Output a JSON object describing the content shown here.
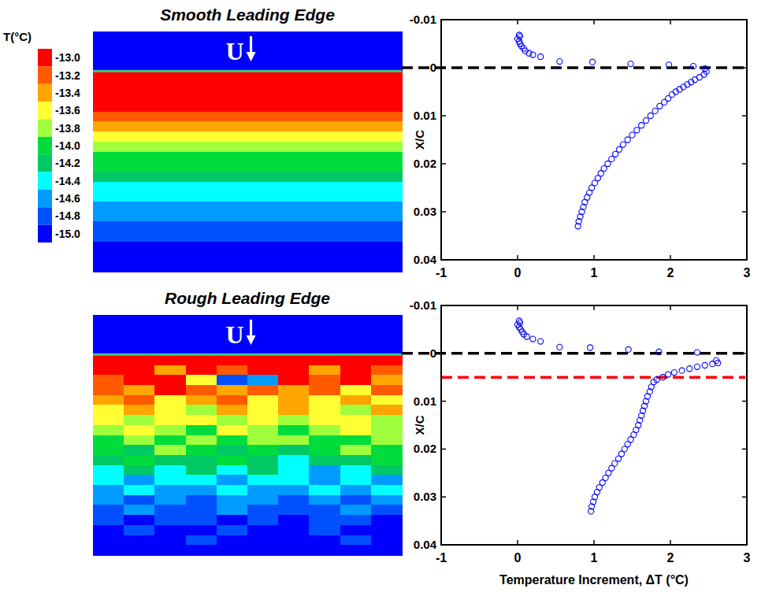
{
  "chart_data": [
    {
      "type": "heatmap",
      "title": "Smooth Leading Edge",
      "annotations": [
        "U"
      ],
      "cells": [
        [
          -15
        ],
        [
          -15
        ],
        [
          -15
        ],
        [
          -15
        ],
        [
          -13
        ],
        [
          -13
        ],
        [
          -13
        ],
        [
          -13
        ],
        [
          -13.2
        ],
        [
          -13.4
        ],
        [
          -13.6
        ],
        [
          -13.8
        ],
        [
          -14.0
        ],
        [
          -14.0
        ],
        [
          -14.2
        ],
        [
          -14.4
        ],
        [
          -14.4
        ],
        [
          -14.6
        ],
        [
          -14.6
        ],
        [
          -14.8
        ],
        [
          -14.8
        ],
        [
          -15
        ],
        [
          -15
        ],
        [
          -15
        ]
      ],
      "colorbar": {
        "title": "T(°C)",
        "range": [
          -15.1,
          -12.9
        ],
        "ticks": [
          {
            "value": -13,
            "label": "-13.0"
          },
          {
            "value": -13.2,
            "label": "-13.2"
          },
          {
            "value": -13.4,
            "label": "-13.4"
          },
          {
            "value": -13.6,
            "label": "-13.6"
          },
          {
            "value": -13.8,
            "label": "-13.8"
          },
          {
            "value": -14,
            "label": "-14.0"
          },
          {
            "value": -14.2,
            "label": "-14.2"
          },
          {
            "value": -14.4,
            "label": "-14.4"
          },
          {
            "value": -14.6,
            "label": "-14.6"
          },
          {
            "value": -14.8,
            "label": "-14.8"
          },
          {
            "value": -15,
            "label": "-15.0"
          }
        ],
        "colors": [
          "#ff0000",
          "#ff5a00",
          "#ffa500",
          "#ffff33",
          "#a0ff3c",
          "#00dc3c",
          "#00c864",
          "#00ffff",
          "#009bff",
          "#0050ff",
          "#0000ff"
        ]
      }
    },
    {
      "type": "heatmap",
      "title": "Rough Leading Edge",
      "annotations": [
        "U"
      ],
      "cells": [
        [
          -15,
          -15,
          -15,
          -15,
          -15,
          -15,
          -15,
          -15,
          -15,
          -15
        ],
        [
          -15,
          -15,
          -15,
          -15,
          -15,
          -15,
          -15,
          -15,
          -15,
          -15
        ],
        [
          -15,
          -15,
          -15,
          -15,
          -15,
          -15,
          -15,
          -15,
          -15,
          -15
        ],
        [
          -15,
          -15,
          -15,
          -15,
          -15,
          -15,
          -15,
          -15,
          -15,
          -15
        ],
        [
          -13,
          -13,
          -13,
          -13,
          -13,
          -13,
          -13,
          -13,
          -13,
          -13
        ],
        [
          -13,
          -13,
          -13.4,
          -13,
          -13.2,
          -13,
          -13,
          -13.4,
          -13,
          -13.2
        ],
        [
          -13.2,
          -13,
          -13,
          -13.6,
          -14.8,
          -14.6,
          -13,
          -13.2,
          -13,
          -13.4
        ],
        [
          -13.2,
          -13.4,
          -13,
          -13.2,
          -13.4,
          -13.2,
          -13.4,
          -13.2,
          -13.6,
          -13.2
        ],
        [
          -13.4,
          -13.2,
          -13.6,
          -13.4,
          -13.2,
          -13.6,
          -13.4,
          -13.6,
          -13.4,
          -13.6
        ],
        [
          -13.6,
          -13.4,
          -13.6,
          -13.8,
          -13.4,
          -13.6,
          -13.4,
          -13.6,
          -13.8,
          -13.4
        ],
        [
          -13.6,
          -13.8,
          -13.6,
          -13.6,
          -13.8,
          -13.6,
          -13.8,
          -13.6,
          -13.6,
          -13.8
        ],
        [
          -13.8,
          -13.6,
          -13.8,
          -14.0,
          -13.6,
          -13.8,
          -14.0,
          -13.8,
          -13.6,
          -13.8
        ],
        [
          -14.0,
          -13.8,
          -14.0,
          -13.8,
          -14.0,
          -13.8,
          -13.8,
          -14.0,
          -14.0,
          -13.8
        ],
        [
          -14.0,
          -14.2,
          -13.8,
          -14.0,
          -14.2,
          -14.0,
          -14.2,
          -14.0,
          -13.8,
          -14.0
        ],
        [
          -14.2,
          -14.0,
          -14.2,
          -14.2,
          -14.0,
          -14.2,
          -14.4,
          -14.2,
          -14.2,
          -14.0
        ],
        [
          -14.4,
          -14.2,
          -14.4,
          -14.2,
          -14.4,
          -14.2,
          -14.4,
          -14.6,
          -14.4,
          -14.2
        ],
        [
          -14.4,
          -14.6,
          -14.4,
          -14.4,
          -14.6,
          -14.4,
          -14.4,
          -14.6,
          -14.4,
          -14.6
        ],
        [
          -14.6,
          -14.4,
          -14.6,
          -14.6,
          -14.4,
          -14.6,
          -14.6,
          -14.4,
          -14.6,
          -14.4
        ],
        [
          -14.6,
          -14.8,
          -14.6,
          -14.8,
          -14.6,
          -14.6,
          -14.8,
          -14.6,
          -14.8,
          -14.6
        ],
        [
          -14.8,
          -14.6,
          -14.8,
          -14.8,
          -14.6,
          -14.8,
          -14.8,
          -14.8,
          -14.6,
          -14.8
        ],
        [
          -14.8,
          -15,
          -14.8,
          -14.8,
          -15,
          -14.8,
          -15,
          -14.8,
          -14.8,
          -15
        ],
        [
          -15,
          -14.8,
          -15,
          -15,
          -14.8,
          -15,
          -15,
          -14.8,
          -15,
          -15
        ],
        [
          -15,
          -15,
          -15,
          -14.8,
          -15,
          -15,
          -15,
          -15,
          -14.8,
          -15
        ],
        [
          -15,
          -15,
          -15,
          -15,
          -15,
          -15,
          -15,
          -15,
          -15,
          -15
        ]
      ]
    },
    {
      "type": "scatter",
      "ylabel": "X/C",
      "marker": "circle",
      "color": "#0000ff",
      "xlim": [
        -1,
        3
      ],
      "xticks": [
        -1,
        0,
        1,
        2,
        3
      ],
      "ylim": [
        0.04,
        -0.01
      ],
      "yticks": [
        -0.01,
        0,
        0.01,
        0.02,
        0.03,
        0.04
      ],
      "reference_lines": [
        {
          "value": 0,
          "color": "#000000"
        }
      ],
      "x": [
        0.02,
        0.03,
        0.0,
        0.02,
        0.03,
        0.05,
        0.08,
        0.1,
        0.15,
        0.2,
        0.3,
        0.55,
        0.98,
        1.48,
        1.98,
        2.3,
        2.45,
        2.47,
        2.44,
        2.38,
        2.32,
        2.27,
        2.22,
        2.17,
        2.12,
        2.07,
        2.02,
        1.97,
        1.92,
        1.86,
        1.8,
        1.74,
        1.68,
        1.62,
        1.56,
        1.5,
        1.44,
        1.38,
        1.33,
        1.28,
        1.23,
        1.18,
        1.13,
        1.09,
        1.05,
        1.01,
        0.97,
        0.94,
        0.91,
        0.88,
        0.86,
        0.84,
        0.82,
        0.8,
        0.79
      ],
      "values": [
        -0.0068,
        -0.0065,
        -0.006,
        -0.0055,
        -0.005,
        -0.0045,
        -0.004,
        -0.0035,
        -0.003,
        -0.0027,
        -0.0023,
        -0.0013,
        -0.0012,
        -0.0008,
        -0.0006,
        -0.0003,
        0.0002,
        0.0008,
        0.0014,
        0.002,
        0.0025,
        0.003,
        0.0035,
        0.004,
        0.0045,
        0.005,
        0.0056,
        0.0064,
        0.0072,
        0.008,
        0.009,
        0.01,
        0.011,
        0.012,
        0.013,
        0.014,
        0.015,
        0.016,
        0.017,
        0.018,
        0.019,
        0.02,
        0.021,
        0.022,
        0.023,
        0.024,
        0.025,
        0.026,
        0.027,
        0.028,
        0.029,
        0.03,
        0.031,
        0.032,
        0.033
      ]
    },
    {
      "type": "scatter",
      "ylabel": "X/C",
      "xlabel": "Temperature Increment, ΔT (°C)",
      "marker": "circle",
      "color": "#0000ff",
      "xlim": [
        -1,
        3
      ],
      "xticks": [
        -1,
        0,
        1,
        2,
        3
      ],
      "ylim": [
        0.04,
        -0.01
      ],
      "yticks": [
        -0.01,
        0,
        0.01,
        0.02,
        0.03,
        0.04
      ],
      "reference_lines": [
        {
          "value": 0,
          "color": "#000000"
        },
        {
          "value": 0.005,
          "color": "#ff0000"
        }
      ],
      "x": [
        0.02,
        0.03,
        0.0,
        0.02,
        0.04,
        0.06,
        0.08,
        0.12,
        0.2,
        0.3,
        0.55,
        0.95,
        1.45,
        1.85,
        2.35,
        2.6,
        2.62,
        2.55,
        2.45,
        2.35,
        2.25,
        2.15,
        2.05,
        1.97,
        1.9,
        1.82,
        1.78,
        1.75,
        1.73,
        1.7,
        1.68,
        1.66,
        1.64,
        1.62,
        1.6,
        1.58,
        1.55,
        1.52,
        1.48,
        1.44,
        1.4,
        1.36,
        1.32,
        1.27,
        1.23,
        1.19,
        1.15,
        1.11,
        1.07,
        1.04,
        1.01,
        0.99,
        0.97,
        0.96
      ],
      "values": [
        -0.0068,
        -0.0064,
        -0.006,
        -0.0055,
        -0.005,
        -0.0045,
        -0.004,
        -0.0035,
        -0.003,
        -0.0025,
        -0.0013,
        -0.0012,
        -0.0008,
        -0.0003,
        -0.0002,
        0.0015,
        0.002,
        0.0022,
        0.0025,
        0.0028,
        0.0032,
        0.0036,
        0.004,
        0.0044,
        0.005,
        0.0055,
        0.006,
        0.007,
        0.008,
        0.009,
        0.01,
        0.011,
        0.012,
        0.013,
        0.014,
        0.015,
        0.016,
        0.017,
        0.018,
        0.019,
        0.02,
        0.021,
        0.022,
        0.023,
        0.024,
        0.025,
        0.026,
        0.027,
        0.028,
        0.029,
        0.03,
        0.031,
        0.032,
        0.033
      ]
    }
  ]
}
